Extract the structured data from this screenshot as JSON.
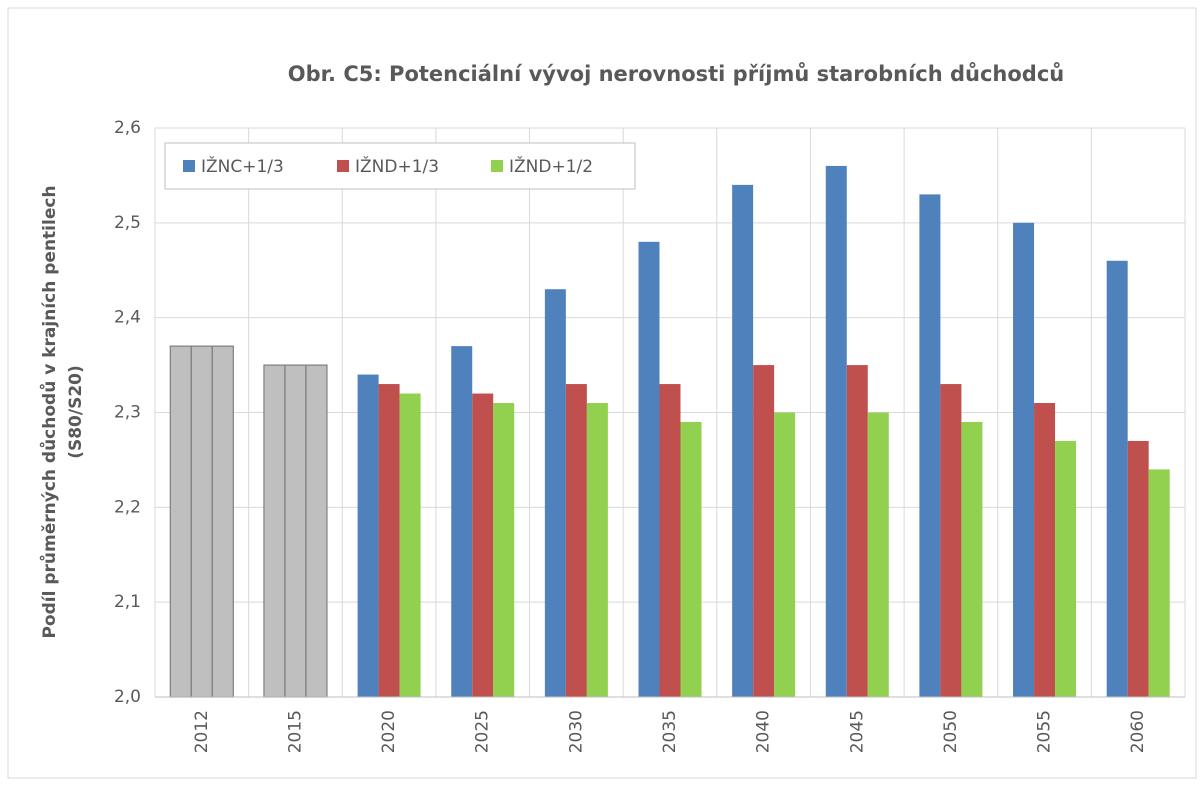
{
  "chart_data": {
    "type": "bar",
    "title": "Obr. C5: Potenciální vývoj nerovnosti příjmů starobních důchodců",
    "y_label": [
      "Podíl průměrných důchodů v krajních pentilech",
      "(S80/S20)"
    ],
    "categories": [
      "2012",
      "2015",
      "2020",
      "2025",
      "2030",
      "2035",
      "2040",
      "2045",
      "2050",
      "2055",
      "2060"
    ],
    "series": [
      {
        "name": "IŽNC+1/3",
        "color": "#4f81bd",
        "colors": [
          "#bfbfbf",
          "#bfbfbf",
          "#4f81bd",
          "#4f81bd",
          "#4f81bd",
          "#4f81bd",
          "#4f81bd",
          "#4f81bd",
          "#4f81bd",
          "#4f81bd",
          "#4f81bd"
        ],
        "values": [
          2.37,
          2.35,
          2.34,
          2.37,
          2.43,
          2.48,
          2.54,
          2.56,
          2.53,
          2.5,
          2.46
        ]
      },
      {
        "name": "IŽND+1/3",
        "color": "#c0504d",
        "colors": [
          "#bfbfbf",
          "#bfbfbf",
          "#c0504d",
          "#c0504d",
          "#c0504d",
          "#c0504d",
          "#c0504d",
          "#c0504d",
          "#c0504d",
          "#c0504d",
          "#c0504d"
        ],
        "values": [
          2.37,
          2.35,
          2.33,
          2.32,
          2.33,
          2.33,
          2.35,
          2.35,
          2.33,
          2.31,
          2.27
        ]
      },
      {
        "name": "IŽND+1/2",
        "color": "#92d050",
        "colors": [
          "#bfbfbf",
          "#bfbfbf",
          "#92d050",
          "#92d050",
          "#92d050",
          "#92d050",
          "#92d050",
          "#92d050",
          "#92d050",
          "#92d050",
          "#92d050"
        ],
        "values": [
          2.37,
          2.35,
          2.32,
          2.31,
          2.31,
          2.29,
          2.3,
          2.3,
          2.29,
          2.27,
          2.24
        ]
      }
    ],
    "ylim": [
      2.0,
      2.6
    ],
    "yticks": [
      {
        "value": 2.0,
        "label": "2,0"
      },
      {
        "value": 2.1,
        "label": "2,1"
      },
      {
        "value": 2.2,
        "label": "2,2"
      },
      {
        "value": 2.3,
        "label": "2,3"
      },
      {
        "value": 2.4,
        "label": "2,4"
      },
      {
        "value": 2.5,
        "label": "2,5"
      },
      {
        "value": 2.6,
        "label": "2,6"
      }
    ],
    "grid": true,
    "legend": "top-left"
  }
}
